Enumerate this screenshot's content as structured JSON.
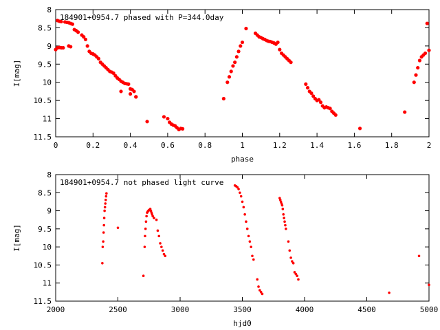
{
  "chart_data": [
    {
      "type": "scatter",
      "title": "184901+0954.7 phased with P=344.0day",
      "xlabel": "phase",
      "ylabel": "I[mag]",
      "xlim": [
        0,
        2
      ],
      "ylim": [
        11.5,
        8
      ],
      "y_inverted": true,
      "x_ticks": [
        "0",
        "0.2",
        "0.4",
        "0.6",
        "0.8",
        "1",
        "1.2",
        "1.4",
        "1.6",
        "1.8",
        "2"
      ],
      "y_ticks": [
        "8",
        "8.5",
        "9",
        "9.5",
        "10",
        "10.5",
        "11",
        "11.5"
      ],
      "marker_color": "#ff0000",
      "grid": false,
      "series": [
        {
          "x": [
            0.01,
            0.02,
            0.03,
            0.05,
            0.06,
            0.07,
            0.08,
            0.09,
            0.1,
            0.11,
            0.12,
            0.14,
            0.15,
            0.16,
            0.17,
            0.18,
            0.19,
            0.2,
            0.21,
            0.22,
            0.23,
            0.24,
            0.25,
            0.26,
            0.27,
            0.28,
            0.29,
            0.3,
            0.31,
            0.32,
            0.33,
            0.34,
            0.35,
            0.36,
            0.37,
            0.38,
            0.39,
            0.4,
            0.41,
            0.42,
            0.43,
            0.0,
            0.01,
            0.02,
            0.03,
            0.04,
            0.07,
            0.08,
            0.35,
            0.4,
            0.43,
            0.49,
            0.58,
            0.6,
            0.61,
            0.62,
            0.63,
            0.64,
            0.65,
            0.66,
            0.67,
            0.68,
            0.9,
            0.92,
            0.93,
            0.94,
            0.95,
            0.96,
            0.97,
            0.98,
            0.99,
            1.0,
            1.02,
            1.07,
            1.08,
            1.09,
            1.1,
            1.11,
            1.12,
            1.13,
            1.14,
            1.15,
            1.16,
            1.17,
            1.18,
            1.19,
            1.2,
            1.21,
            1.22,
            1.23,
            1.24,
            1.25,
            1.26,
            1.34,
            1.35,
            1.36,
            1.37,
            1.38,
            1.39,
            1.4,
            1.41,
            1.42,
            1.43,
            1.44,
            1.45,
            1.46,
            1.47,
            1.48,
            1.49,
            1.5,
            1.63,
            1.87,
            1.92,
            1.93,
            1.94,
            1.95,
            1.96,
            1.97,
            1.98,
            1.99,
            2.0
          ],
          "y": [
            8.3,
            8.32,
            8.33,
            8.34,
            8.35,
            8.36,
            8.38,
            8.4,
            8.55,
            8.58,
            8.62,
            8.7,
            8.75,
            8.82,
            9.0,
            9.15,
            9.2,
            9.22,
            9.25,
            9.3,
            9.35,
            9.45,
            9.5,
            9.55,
            9.6,
            9.65,
            9.7,
            9.72,
            9.75,
            9.82,
            9.88,
            9.92,
            9.97,
            10.0,
            10.03,
            10.04,
            10.05,
            10.18,
            10.2,
            10.25,
            10.4,
            9.1,
            9.05,
            9.04,
            9.05,
            9.05,
            9.0,
            9.02,
            10.25,
            10.32,
            10.4,
            11.08,
            10.95,
            11.0,
            11.1,
            11.15,
            11.18,
            11.2,
            11.25,
            11.3,
            11.27,
            11.28,
            10.45,
            10.0,
            9.85,
            9.7,
            9.55,
            9.45,
            9.3,
            9.15,
            9.0,
            8.9,
            8.52,
            8.65,
            8.7,
            8.75,
            8.77,
            8.8,
            8.82,
            8.85,
            8.87,
            8.88,
            8.9,
            8.92,
            8.95,
            8.9,
            9.1,
            9.2,
            9.25,
            9.3,
            9.35,
            9.4,
            9.45,
            10.05,
            10.15,
            10.25,
            10.3,
            10.38,
            10.45,
            10.5,
            10.48,
            10.55,
            10.65,
            10.7,
            10.68,
            10.7,
            10.72,
            10.8,
            10.85,
            10.9,
            11.27,
            10.82,
            10.0,
            9.8,
            9.6,
            9.4,
            9.3,
            9.25,
            9.2,
            8.38,
            9.12
          ]
        }
      ]
    },
    {
      "type": "scatter",
      "title": "184901+0954.7 not phased light curve",
      "xlabel": "hjd0",
      "ylabel": "I[mag]",
      "xlim": [
        2000,
        5000
      ],
      "ylim": [
        11.5,
        8
      ],
      "y_inverted": true,
      "x_ticks": [
        "2000",
        "2500",
        "3000",
        "3500",
        "4000",
        "4500",
        "5000"
      ],
      "y_ticks": [
        "8",
        "8.5",
        "9",
        "9.5",
        "10",
        "10.5",
        "11",
        "11.5"
      ],
      "marker_color": "#ff0000",
      "grid": false,
      "series": [
        {
          "x": [
            2375,
            2378,
            2382,
            2385,
            2388,
            2390,
            2393,
            2396,
            2399,
            2402,
            2405,
            2408,
            2500,
            2705,
            2715,
            2718,
            2722,
            2726,
            2730,
            2735,
            2740,
            2745,
            2750,
            2755,
            2760,
            2765,
            2770,
            2775,
            2780,
            2790,
            2810,
            2820,
            2830,
            2840,
            2850,
            2860,
            2870,
            2880,
            3440,
            3450,
            3460,
            3470,
            3480,
            3490,
            3500,
            3510,
            3520,
            3530,
            3540,
            3550,
            3560,
            3570,
            3580,
            3590,
            3620,
            3630,
            3640,
            3650,
            3660,
            3800,
            3805,
            3810,
            3815,
            3820,
            3825,
            3830,
            3835,
            3840,
            3845,
            3850,
            3870,
            3880,
            3890,
            3900,
            3910,
            3920,
            3930,
            3940,
            3950,
            4680,
            4920,
            5000
          ],
          "y": [
            10.45,
            10.0,
            9.85,
            9.6,
            9.4,
            9.2,
            9.0,
            8.9,
            8.8,
            8.7,
            8.6,
            8.52,
            9.47,
            10.8,
            10.0,
            9.7,
            9.5,
            9.3,
            9.15,
            9.05,
            9.02,
            9.0,
            8.98,
            8.97,
            8.95,
            9.0,
            9.05,
            9.1,
            9.15,
            9.2,
            9.25,
            9.55,
            9.7,
            9.9,
            10.0,
            10.1,
            10.2,
            10.25,
            8.3,
            8.32,
            8.35,
            8.4,
            8.5,
            8.6,
            8.75,
            8.9,
            9.1,
            9.3,
            9.5,
            9.7,
            9.85,
            10.0,
            10.25,
            10.35,
            10.9,
            11.1,
            11.2,
            11.25,
            11.3,
            8.65,
            8.7,
            8.75,
            8.8,
            8.85,
            8.95,
            9.1,
            9.2,
            9.3,
            9.4,
            9.5,
            9.85,
            10.1,
            10.3,
            10.4,
            10.45,
            10.7,
            10.75,
            10.8,
            10.9,
            11.27,
            10.25,
            11.05
          ]
        }
      ]
    }
  ]
}
